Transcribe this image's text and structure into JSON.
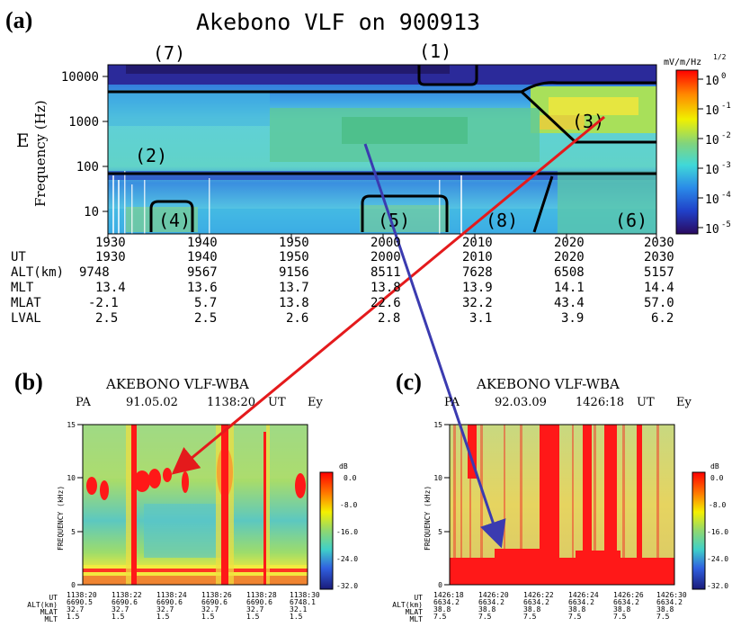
{
  "panel_a": {
    "label": "(a)",
    "title": "Akebono VLF on 900913",
    "ylabel": "Frequency (Hz)",
    "component": "E",
    "y_ticks": [
      "10000",
      "1000",
      "100",
      "10"
    ],
    "x_ticks": [
      "1930",
      "1940",
      "1950",
      "2000",
      "2010",
      "2020",
      "2030"
    ],
    "region_labels": [
      "(1)",
      "(2)",
      "(3)",
      "(4)",
      "(5)",
      "(6)",
      "(7)",
      "(8)"
    ],
    "colorbar": {
      "unit": "mV/m/Hz",
      "unit_power": "1/2",
      "ticks": [
        "10",
        "10",
        "10",
        "10",
        "10",
        "10"
      ],
      "powers": [
        "0",
        "-1",
        "-2",
        "-3",
        "-4",
        "-5"
      ]
    },
    "ephemeris": {
      "rows": [
        {
          "name": "UT",
          "values": [
            "1930",
            "1940",
            "1950",
            "2000",
            "2010",
            "2020",
            "2030"
          ]
        },
        {
          "name": "ALT(km)",
          "values": [
            "9748",
            "9567",
            "9156",
            "8511",
            "7628",
            "6508",
            "5157"
          ]
        },
        {
          "name": "MLT",
          "values": [
            "13.4",
            "13.6",
            "13.7",
            "13.8",
            "13.9",
            "14.1",
            "14.4"
          ]
        },
        {
          "name": "MLAT",
          "values": [
            "-2.1",
            "5.7",
            "13.8",
            "22.6",
            "32.2",
            "43.4",
            "57.0"
          ]
        },
        {
          "name": "LVAL",
          "values": [
            "2.5",
            "2.5",
            "2.6",
            "2.8",
            "3.1",
            "3.9",
            "6.2"
          ]
        }
      ]
    }
  },
  "panel_b": {
    "label": "(b)",
    "title": "AKEBONO  VLF-WBA",
    "sub": [
      "PA",
      "91.05.02",
      "1138:20",
      "UT",
      "Ey"
    ],
    "ylabel": "FREQUENCY (kHz)",
    "y_ticks": [
      "15",
      "10",
      "5",
      "0"
    ],
    "colorbar_unit": "dB",
    "colorbar_ticks": [
      "0.0",
      "-8.0",
      "-16.0",
      "-24.0",
      "-32.0"
    ],
    "eph_names": [
      "UT",
      "ALT(km)",
      "MLAT",
      "MLT"
    ],
    "eph_cols": [
      [
        "1138:20",
        "6690.5",
        "32.7",
        "1.5"
      ],
      [
        "1138:22",
        "6690.6",
        "32.7",
        "1.5"
      ],
      [
        "1138:24",
        "6690.6",
        "32.7",
        "1.5"
      ],
      [
        "1138:26",
        "6690.6",
        "32.7",
        "1.5"
      ],
      [
        "1138:28",
        "6690.6",
        "32.7",
        "1.5"
      ],
      [
        "1138:30",
        "6748.1",
        "32.1",
        "1.5"
      ]
    ]
  },
  "panel_c": {
    "label": "(c)",
    "title": "AKEBONO  VLF-WBA",
    "sub": [
      "PA",
      "92.03.09",
      "1426:18",
      "UT",
      "Ey"
    ],
    "ylabel": "FREQUENCY (kHz)",
    "y_ticks": [
      "15",
      "10",
      "5",
      "0"
    ],
    "colorbar_unit": "dB",
    "colorbar_ticks": [
      "0.0",
      "-8.0",
      "-16.0",
      "-24.0",
      "-32.0"
    ],
    "eph_names": [
      "UT",
      "ALT(km)",
      "MLAT",
      "MLT"
    ],
    "eph_cols": [
      [
        "1426:18",
        "6634.2",
        "38.8",
        "7.5"
      ],
      [
        "1426:20",
        "6634.2",
        "38.8",
        "7.5"
      ],
      [
        "1426:22",
        "6634.2",
        "38.8",
        "7.5"
      ],
      [
        "1426:24",
        "6634.2",
        "38.8",
        "7.5"
      ],
      [
        "1426:26",
        "6634.2",
        "38.8",
        "7.5"
      ],
      [
        "1426:30",
        "6634.2",
        "38.8",
        "7.5"
      ]
    ]
  },
  "colors": {
    "red_arrow": "#e41a1c",
    "blue_arrow": "#3b3bb0"
  },
  "chart_data": [
    {
      "type": "heatmap",
      "title": "Akebono VLF on 900913",
      "ylabel": "Frequency (Hz)",
      "y_scale": "log",
      "ylim": [
        3,
        15000
      ],
      "x": [
        1930,
        1940,
        1950,
        2000,
        2010,
        2020,
        2030
      ],
      "xlim": [
        1930,
        2030
      ],
      "colorbar_range": [
        1e-05,
        1
      ],
      "colorbar_unit": "mV/m/Hz^1/2"
    },
    {
      "type": "heatmap",
      "title": "AKEBONO VLF-WBA",
      "ylabel": "FREQUENCY (kHz)",
      "ylim": [
        0,
        15
      ],
      "x": [
        "1138:20",
        "1138:22",
        "1138:24",
        "1138:26",
        "1138:28",
        "1138:30"
      ],
      "colorbar_range": [
        -32,
        0
      ],
      "colorbar_unit": "dB"
    },
    {
      "type": "heatmap",
      "title": "AKEBONO VLF-WBA",
      "ylabel": "FREQUENCY (kHz)",
      "ylim": [
        0,
        15
      ],
      "x": [
        "1426:18",
        "1426:20",
        "1426:22",
        "1426:24",
        "1426:26",
        "1426:30"
      ],
      "colorbar_range": [
        -32,
        0
      ],
      "colorbar_unit": "dB"
    }
  ]
}
